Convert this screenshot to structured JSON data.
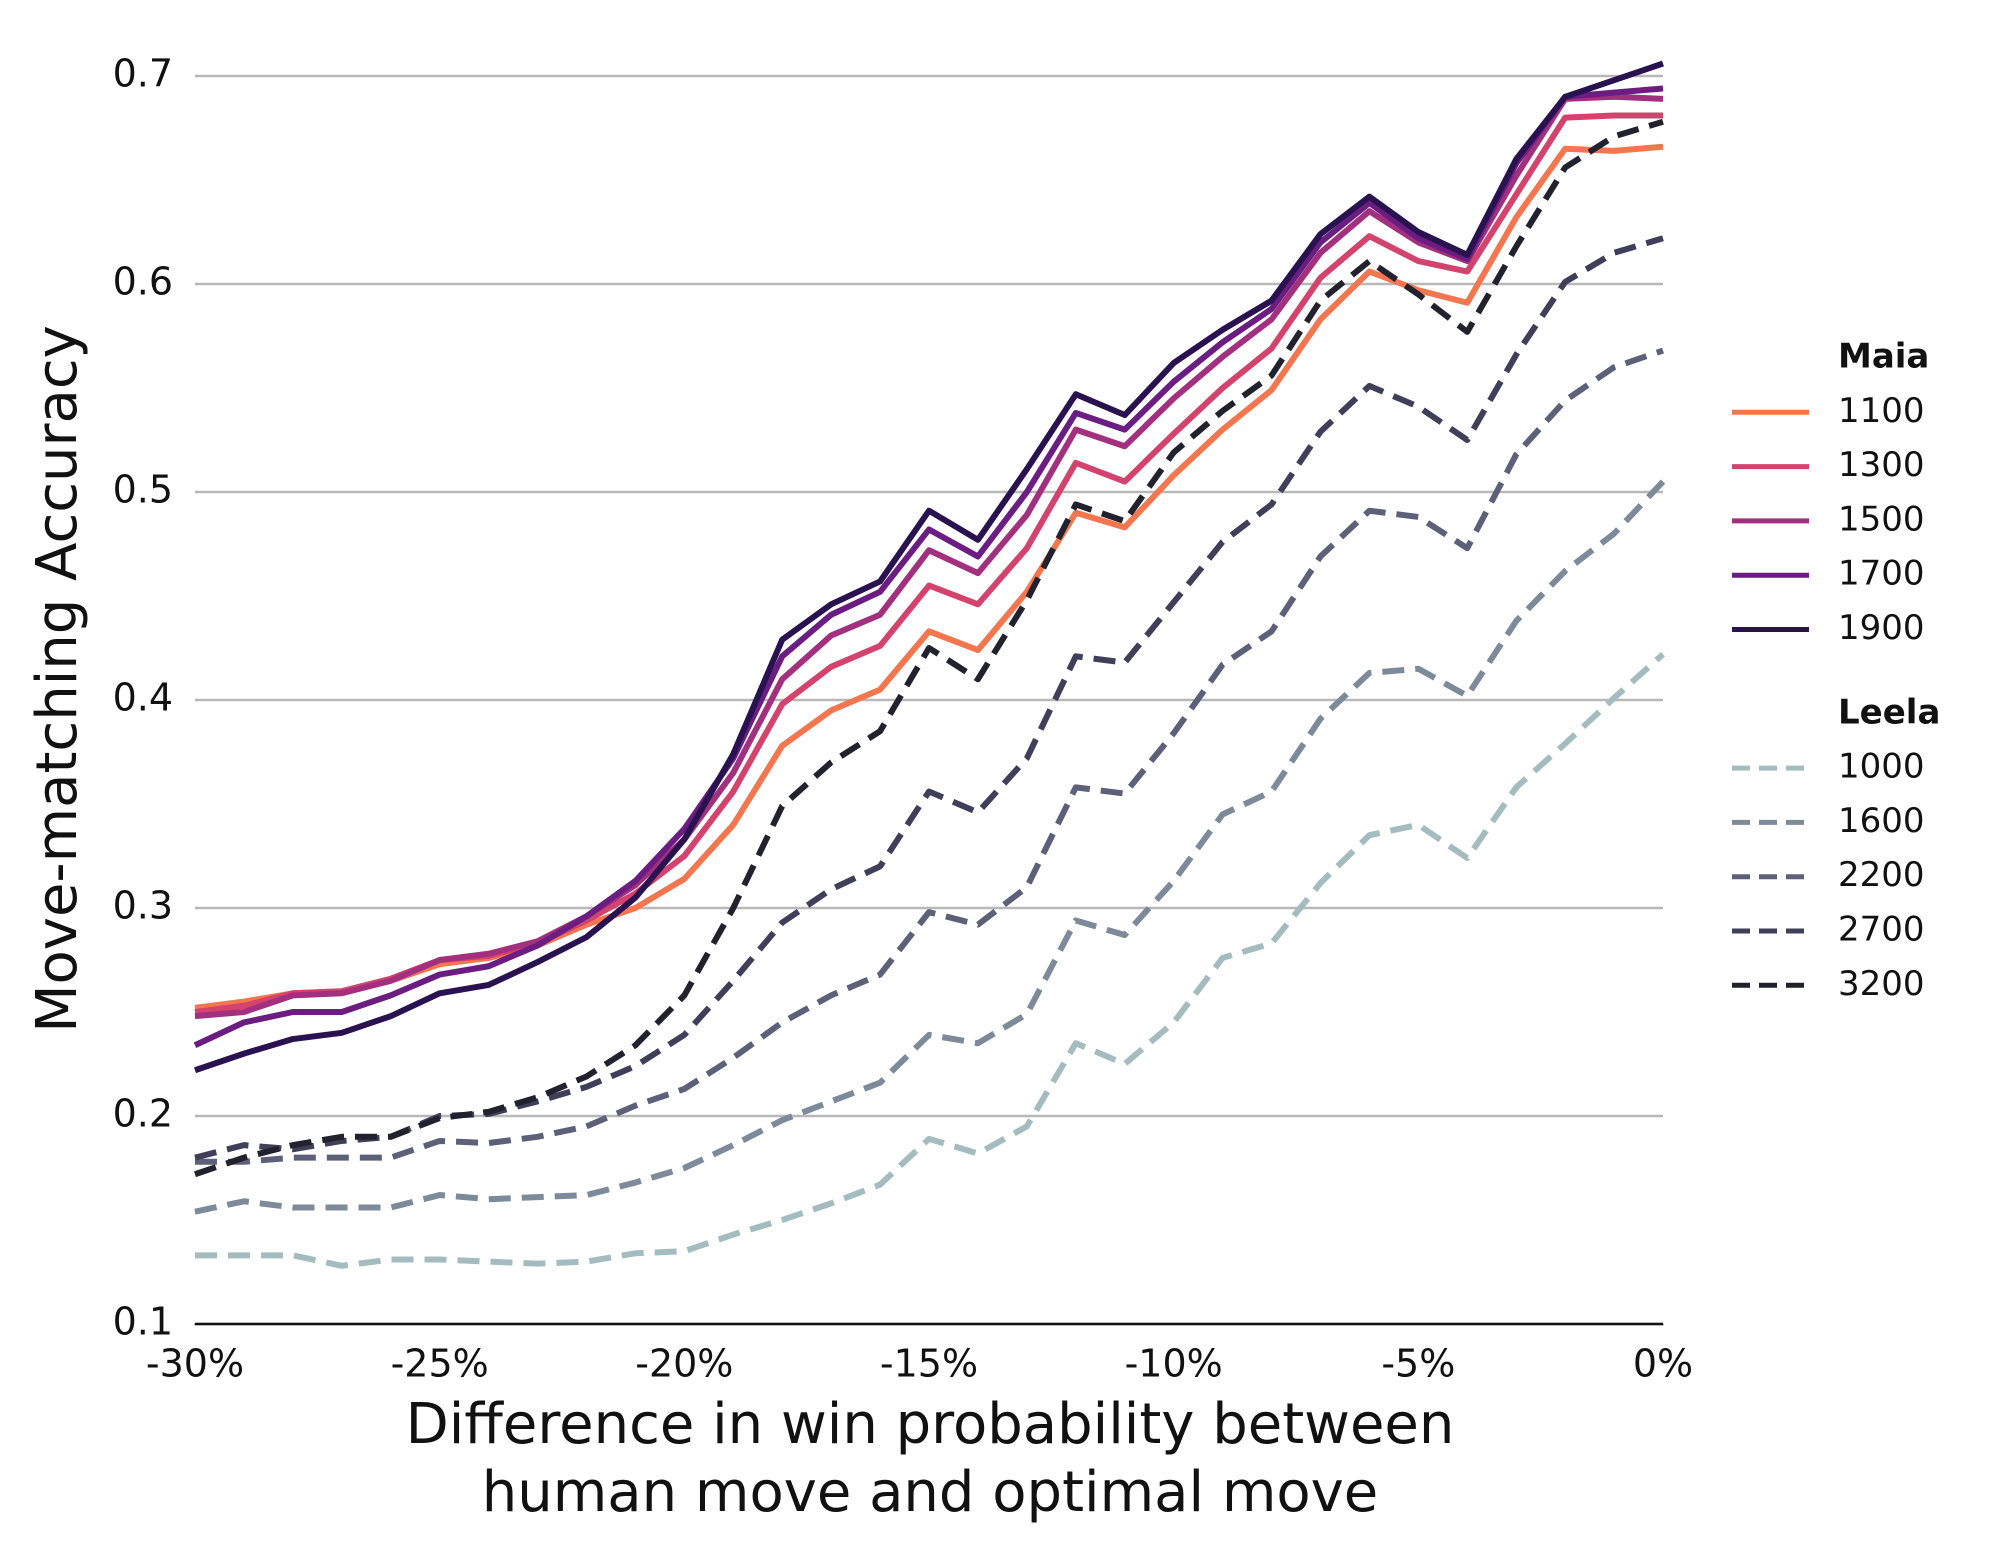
{
  "chart_data": {
    "type": "line",
    "ylabel": "Move-matching Accuracy",
    "xlabel": [
      "Difference in win probability between",
      "human move and optimal move"
    ],
    "x": [
      -30,
      -29,
      -28,
      -27,
      -26,
      -25,
      -24,
      -23,
      -22,
      -21,
      -20,
      -19,
      -18,
      -17,
      -16,
      -15,
      -14,
      -13,
      -12,
      -11,
      -10,
      -9,
      -8,
      -7,
      -6,
      -5,
      -4,
      -3,
      -2,
      -1,
      0
    ],
    "xlim": [
      -30,
      0
    ],
    "xticks": [
      {
        "value": -30,
        "label": "-30%"
      },
      {
        "value": -25,
        "label": "-25%"
      },
      {
        "value": -20,
        "label": "-20%"
      },
      {
        "value": -15,
        "label": "-15%"
      },
      {
        "value": -10,
        "label": "-10%"
      },
      {
        "value": -5,
        "label": "-5%"
      },
      {
        "value": 0,
        "label": "0%"
      }
    ],
    "ylim": [
      0.1,
      0.7
    ],
    "yticks": [
      0.1,
      0.2,
      0.3,
      0.4,
      0.5,
      0.6,
      0.7
    ],
    "grid": true,
    "legend": "right",
    "series": [
      {
        "group": "Maia",
        "name": "1100",
        "color": "#f3764f",
        "linestyle": "solid",
        "values": [
          0.252,
          0.255,
          0.259,
          0.26,
          0.265,
          0.273,
          0.276,
          0.282,
          0.292,
          0.3,
          0.314,
          0.34,
          0.378,
          0.395,
          0.405,
          0.433,
          0.424,
          0.452,
          0.49,
          0.483,
          0.508,
          0.53,
          0.549,
          0.583,
          0.606,
          0.597,
          0.591,
          0.632,
          0.665,
          0.664,
          0.666
        ]
      },
      {
        "group": "Maia",
        "name": "1300",
        "color": "#d3436e",
        "linestyle": "solid",
        "values": [
          0.25,
          0.253,
          0.259,
          0.26,
          0.266,
          0.275,
          0.277,
          0.283,
          0.294,
          0.307,
          0.325,
          0.356,
          0.398,
          0.416,
          0.426,
          0.455,
          0.446,
          0.473,
          0.514,
          0.505,
          0.528,
          0.55,
          0.569,
          0.603,
          0.623,
          0.611,
          0.606,
          0.643,
          0.68,
          0.681,
          0.681
        ]
      },
      {
        "group": "Maia",
        "name": "1500",
        "color": "#a3307e",
        "linestyle": "solid",
        "values": [
          0.248,
          0.25,
          0.258,
          0.259,
          0.265,
          0.275,
          0.278,
          0.284,
          0.296,
          0.311,
          0.333,
          0.365,
          0.41,
          0.431,
          0.441,
          0.472,
          0.461,
          0.489,
          0.53,
          0.522,
          0.545,
          0.565,
          0.583,
          0.615,
          0.635,
          0.62,
          0.611,
          0.652,
          0.689,
          0.69,
          0.689
        ]
      },
      {
        "group": "Maia",
        "name": "1700",
        "color": "#6b1d81",
        "linestyle": "solid",
        "values": [
          0.234,
          0.245,
          0.25,
          0.25,
          0.258,
          0.268,
          0.272,
          0.282,
          0.296,
          0.313,
          0.338,
          0.372,
          0.421,
          0.441,
          0.452,
          0.482,
          0.469,
          0.5,
          0.538,
          0.53,
          0.553,
          0.572,
          0.588,
          0.62,
          0.639,
          0.622,
          0.612,
          0.658,
          0.69,
          0.692,
          0.694
        ]
      },
      {
        "group": "Maia",
        "name": "1900",
        "color": "#2a1250",
        "linestyle": "solid",
        "values": [
          0.222,
          0.23,
          0.237,
          0.24,
          0.248,
          0.259,
          0.263,
          0.274,
          0.286,
          0.305,
          0.333,
          0.374,
          0.429,
          0.446,
          0.457,
          0.491,
          0.477,
          0.511,
          0.547,
          0.537,
          0.562,
          0.578,
          0.592,
          0.624,
          0.642,
          0.625,
          0.614,
          0.66,
          0.69,
          0.698,
          0.706
        ]
      },
      {
        "group": "Leela",
        "name": "1000",
        "color": "#a4bcc0",
        "linestyle": "dashed",
        "values": [
          0.133,
          0.133,
          0.133,
          0.128,
          0.131,
          0.131,
          0.13,
          0.129,
          0.13,
          0.134,
          0.135,
          0.143,
          0.15,
          0.158,
          0.167,
          0.189,
          0.182,
          0.195,
          0.235,
          0.225,
          0.245,
          0.276,
          0.283,
          0.312,
          0.335,
          0.34,
          0.324,
          0.358,
          0.379,
          0.401,
          0.422
        ]
      },
      {
        "group": "Leela",
        "name": "1600",
        "color": "#7d8a9a",
        "linestyle": "dashed",
        "values": [
          0.154,
          0.159,
          0.156,
          0.156,
          0.156,
          0.162,
          0.16,
          0.161,
          0.162,
          0.168,
          0.175,
          0.186,
          0.198,
          0.207,
          0.216,
          0.239,
          0.235,
          0.249,
          0.294,
          0.287,
          0.313,
          0.345,
          0.356,
          0.391,
          0.413,
          0.415,
          0.402,
          0.438,
          0.462,
          0.48,
          0.505
        ]
      },
      {
        "group": "Leela",
        "name": "2200",
        "color": "#5c6079",
        "linestyle": "dashed",
        "values": [
          0.178,
          0.178,
          0.18,
          0.18,
          0.18,
          0.188,
          0.187,
          0.19,
          0.195,
          0.205,
          0.213,
          0.228,
          0.245,
          0.258,
          0.268,
          0.298,
          0.292,
          0.31,
          0.358,
          0.355,
          0.384,
          0.417,
          0.433,
          0.469,
          0.491,
          0.488,
          0.473,
          0.518,
          0.544,
          0.56,
          0.568
        ]
      },
      {
        "group": "Leela",
        "name": "2700",
        "color": "#3f3f5a",
        "linestyle": "dashed",
        "values": [
          0.18,
          0.186,
          0.184,
          0.188,
          0.19,
          0.2,
          0.201,
          0.207,
          0.214,
          0.224,
          0.239,
          0.265,
          0.293,
          0.309,
          0.32,
          0.356,
          0.346,
          0.372,
          0.421,
          0.418,
          0.447,
          0.476,
          0.494,
          0.529,
          0.551,
          0.541,
          0.525,
          0.566,
          0.601,
          0.615,
          0.622
        ]
      },
      {
        "group": "Leela",
        "name": "3200",
        "color": "#22222e",
        "linestyle": "dashed",
        "values": [
          0.172,
          0.18,
          0.186,
          0.19,
          0.19,
          0.199,
          0.202,
          0.209,
          0.219,
          0.234,
          0.258,
          0.3,
          0.349,
          0.37,
          0.385,
          0.425,
          0.41,
          0.448,
          0.494,
          0.486,
          0.519,
          0.539,
          0.556,
          0.592,
          0.611,
          0.595,
          0.577,
          0.618,
          0.656,
          0.671,
          0.678
        ]
      }
    ]
  }
}
